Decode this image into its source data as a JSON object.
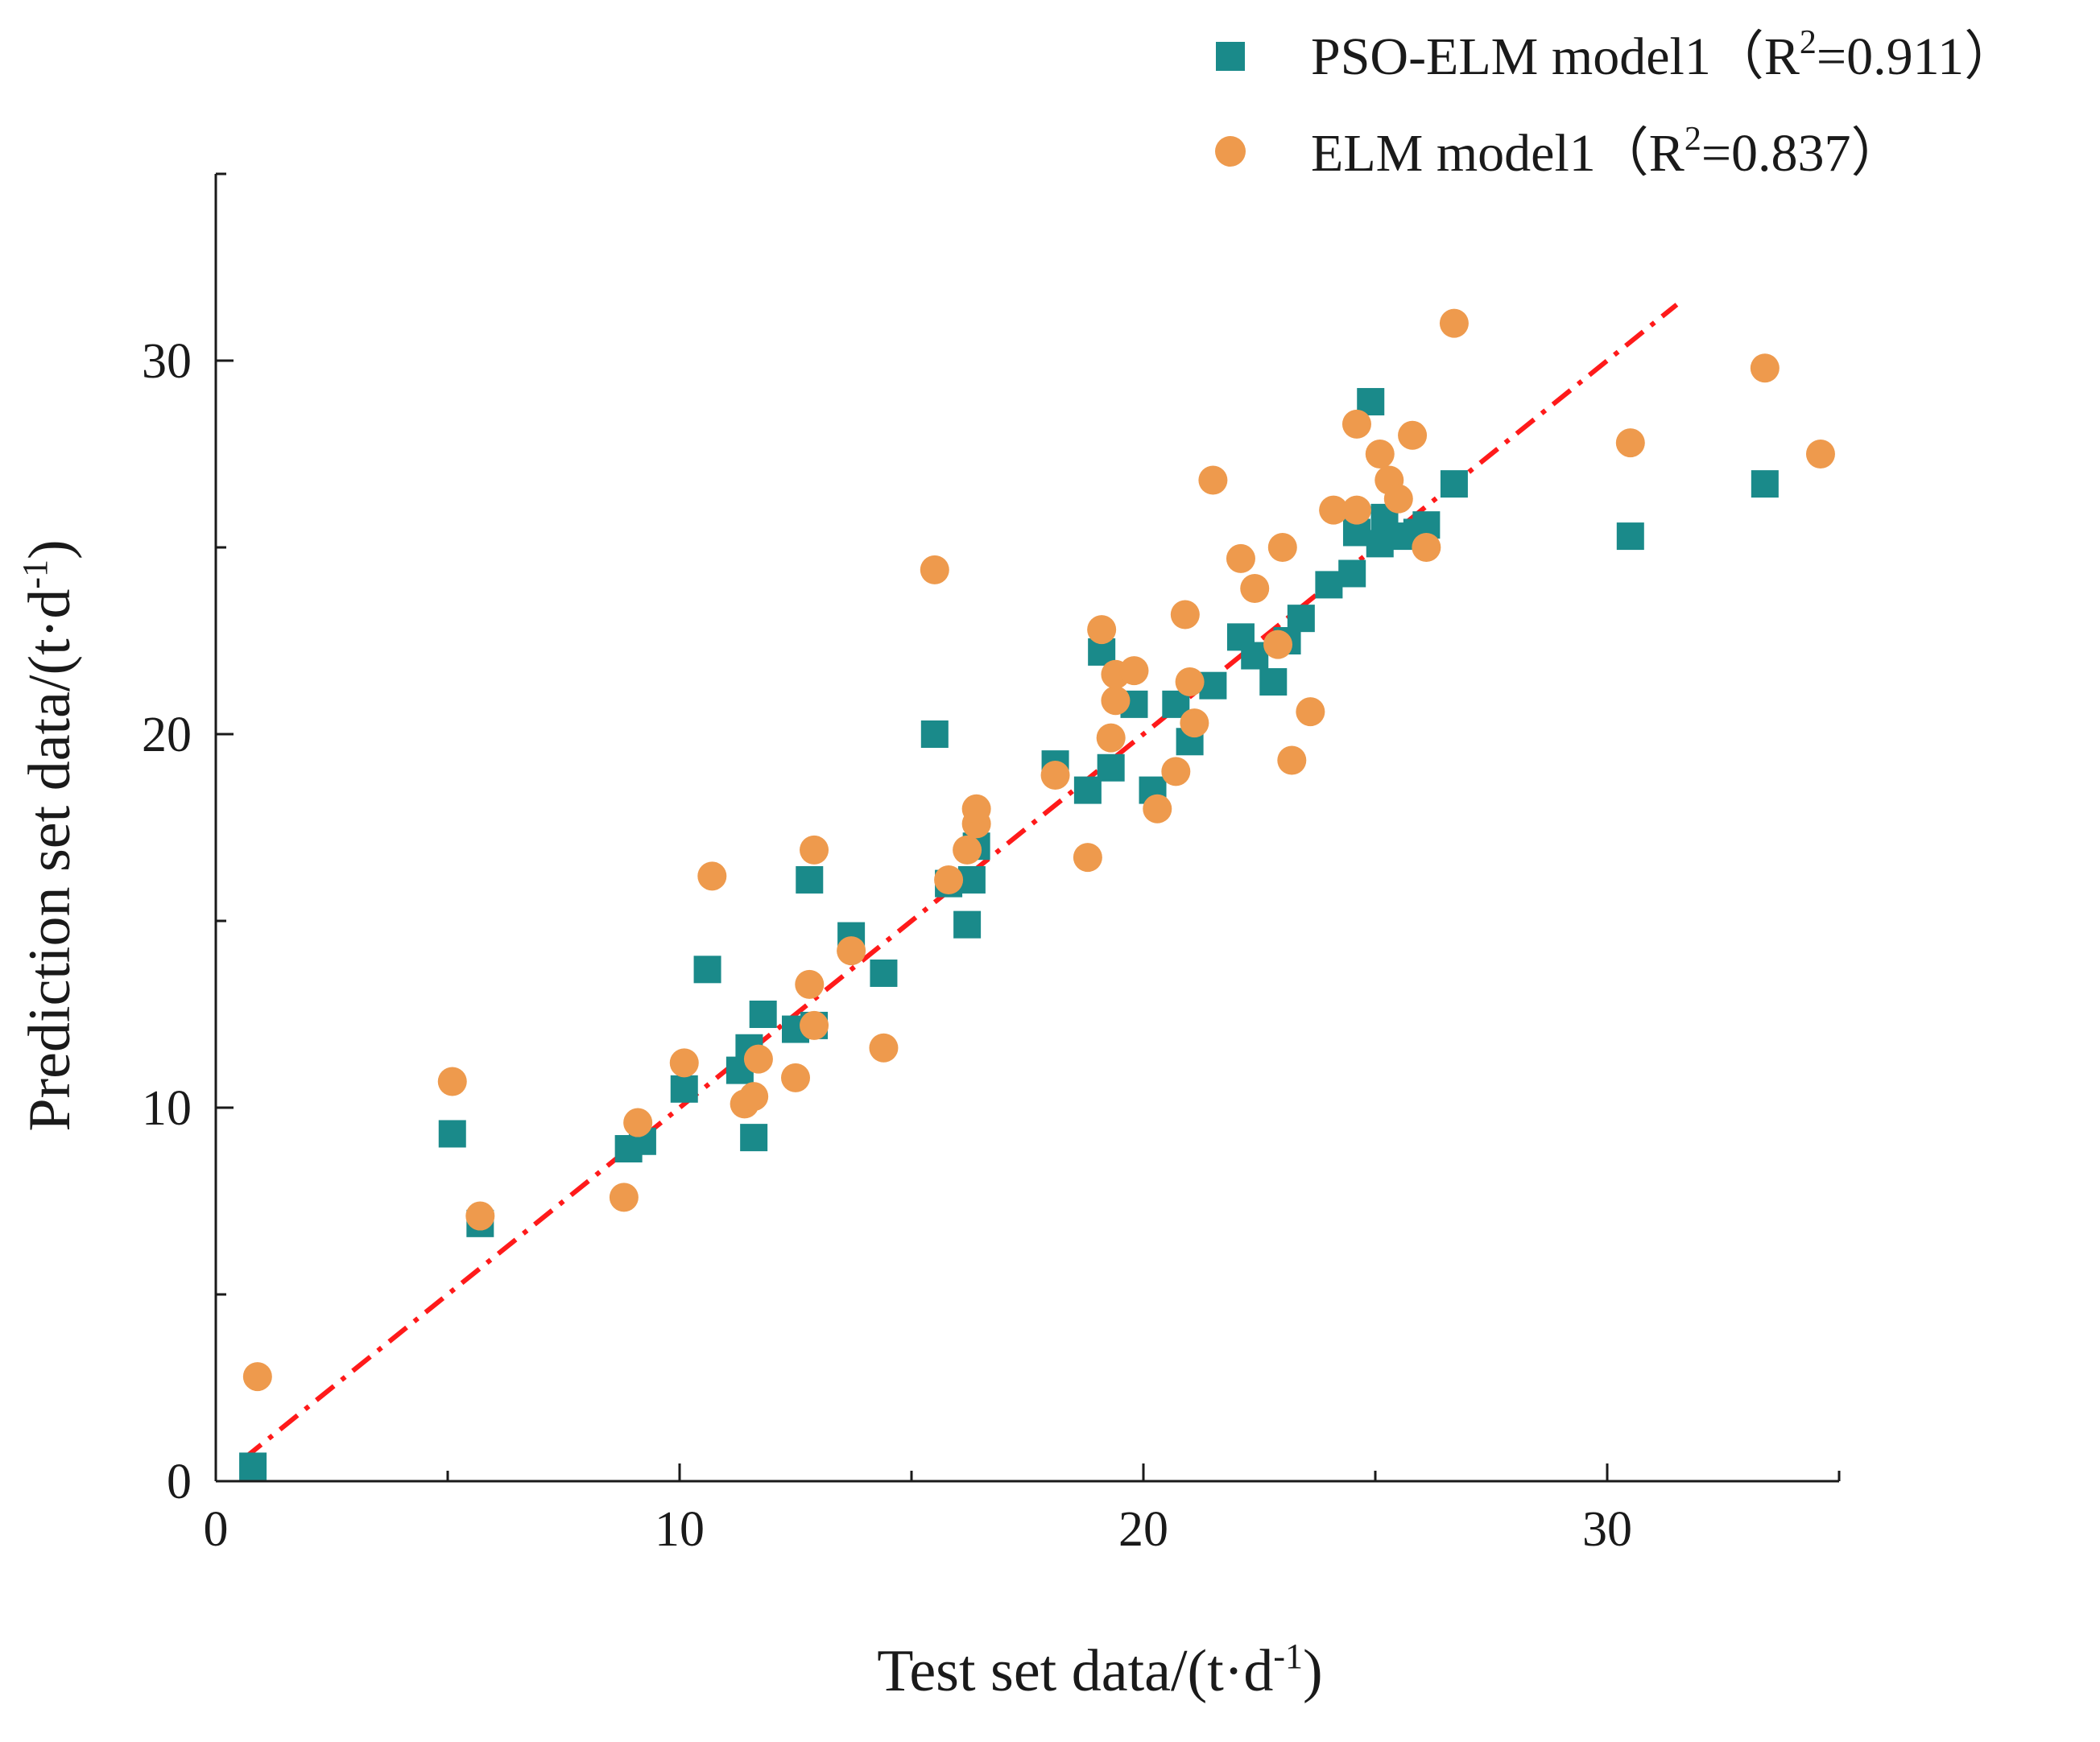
{
  "chart_data": {
    "type": "scatter",
    "title": "",
    "xlabel": "Test set data/(t·d",
    "xlabel_sup": "-1",
    "xlabel_tail": ")",
    "ylabel": "Prediction set data/(t·d",
    "ylabel_sup": "-1",
    "ylabel_tail": ")",
    "xlim": [
      0,
      35
    ],
    "ylim": [
      0,
      35
    ],
    "xticks": [
      0,
      10,
      20,
      30
    ],
    "yticks": [
      0,
      10,
      20,
      30
    ],
    "grid": false,
    "legend_position": "top-right",
    "series": [
      {
        "name": "PSO-ELM model1",
        "legend_prefix": "PSO-ELM model1（R",
        "legend_sup": "2",
        "legend_suffix": "=0.911）",
        "marker": "square",
        "color": "#1a8a8a",
        "points": [
          [
            0.8,
            0.4
          ],
          [
            5.1,
            9.3
          ],
          [
            5.7,
            6.9
          ],
          [
            8.9,
            8.9
          ],
          [
            9.2,
            9.1
          ],
          [
            10.1,
            10.5
          ],
          [
            10.6,
            13.7
          ],
          [
            11.3,
            11.0
          ],
          [
            11.5,
            11.6
          ],
          [
            11.6,
            9.2
          ],
          [
            11.8,
            12.5
          ],
          [
            12.5,
            12.1
          ],
          [
            12.8,
            16.1
          ],
          [
            12.9,
            12.2
          ],
          [
            13.7,
            14.6
          ],
          [
            14.4,
            13.6
          ],
          [
            15.5,
            20.0
          ],
          [
            15.8,
            16.0
          ],
          [
            16.2,
            14.9
          ],
          [
            16.3,
            16.1
          ],
          [
            16.4,
            17.0
          ],
          [
            18.1,
            19.2
          ],
          [
            18.8,
            18.5
          ],
          [
            19.1,
            22.2
          ],
          [
            19.3,
            19.1
          ],
          [
            19.8,
            20.8
          ],
          [
            20.2,
            18.5
          ],
          [
            20.7,
            20.8
          ],
          [
            21.0,
            19.8
          ],
          [
            21.5,
            21.3
          ],
          [
            22.1,
            22.6
          ],
          [
            22.4,
            22.1
          ],
          [
            22.8,
            21.4
          ],
          [
            23.1,
            22.5
          ],
          [
            23.4,
            23.1
          ],
          [
            24.0,
            24.0
          ],
          [
            24.5,
            24.3
          ],
          [
            24.6,
            25.4
          ],
          [
            24.9,
            28.9
          ],
          [
            25.1,
            25.1
          ],
          [
            25.2,
            25.8
          ],
          [
            25.5,
            25.3
          ],
          [
            25.9,
            25.4
          ],
          [
            26.1,
            25.6
          ],
          [
            26.7,
            26.7
          ],
          [
            30.5,
            25.3
          ],
          [
            33.4,
            26.7
          ]
        ]
      },
      {
        "name": "ELM model1",
        "legend_prefix": "ELM model1（R",
        "legend_sup": "2",
        "legend_suffix": "=0.837）",
        "marker": "circle",
        "color": "#ee9a4d",
        "points": [
          [
            0.9,
            2.8
          ],
          [
            5.1,
            10.7
          ],
          [
            5.7,
            7.1
          ],
          [
            8.8,
            7.6
          ],
          [
            9.1,
            9.6
          ],
          [
            10.1,
            11.2
          ],
          [
            10.7,
            16.2
          ],
          [
            11.4,
            10.1
          ],
          [
            11.6,
            10.3
          ],
          [
            11.7,
            11.3
          ],
          [
            12.5,
            10.8
          ],
          [
            12.8,
            13.3
          ],
          [
            12.9,
            16.9
          ],
          [
            12.9,
            12.2
          ],
          [
            13.7,
            14.2
          ],
          [
            14.4,
            11.6
          ],
          [
            15.5,
            24.4
          ],
          [
            15.8,
            16.1
          ],
          [
            16.2,
            16.9
          ],
          [
            16.4,
            17.6
          ],
          [
            16.4,
            18.0
          ],
          [
            18.1,
            18.9
          ],
          [
            18.8,
            16.7
          ],
          [
            19.1,
            22.8
          ],
          [
            19.3,
            19.9
          ],
          [
            19.4,
            20.9
          ],
          [
            19.4,
            21.6
          ],
          [
            19.8,
            21.7
          ],
          [
            20.3,
            18.0
          ],
          [
            20.7,
            19.0
          ],
          [
            20.9,
            23.2
          ],
          [
            21.0,
            21.4
          ],
          [
            21.1,
            20.3
          ],
          [
            21.5,
            26.8
          ],
          [
            22.1,
            24.7
          ],
          [
            22.4,
            23.9
          ],
          [
            22.9,
            22.4
          ],
          [
            23.0,
            25.0
          ],
          [
            23.2,
            19.3
          ],
          [
            23.6,
            20.6
          ],
          [
            24.1,
            26.0
          ],
          [
            24.6,
            26.0
          ],
          [
            24.6,
            28.3
          ],
          [
            25.1,
            27.5
          ],
          [
            25.3,
            26.8
          ],
          [
            25.5,
            26.3
          ],
          [
            25.8,
            28.0
          ],
          [
            26.1,
            25.0
          ],
          [
            26.7,
            31.0
          ],
          [
            30.5,
            27.8
          ],
          [
            33.4,
            29.8
          ],
          [
            34.6,
            27.5
          ]
        ]
      }
    ],
    "fit_line": {
      "style": "dash-dot",
      "color": "#ff1a1a",
      "from": [
        0.6,
        0.6
      ],
      "to": [
        31.5,
        31.5
      ]
    }
  }
}
